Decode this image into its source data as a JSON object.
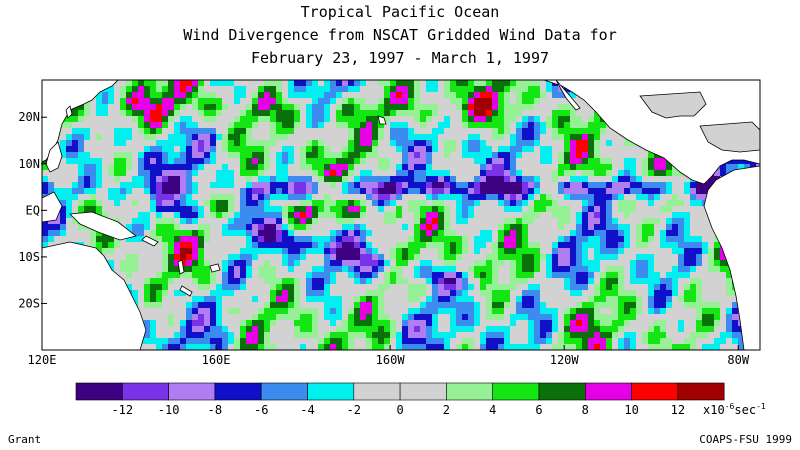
{
  "title": {
    "line1": "Tropical Pacific Ocean",
    "line2": "Wind Divergence from NSCAT Gridded Wind Data for",
    "line3": "February 23, 1997 - March 1, 1997"
  },
  "map": {
    "lat_labels": [
      {
        "label": "20N",
        "lat": 20
      },
      {
        "label": "10N",
        "lat": 10
      },
      {
        "label": "EQ",
        "lat": 0
      },
      {
        "label": "10S",
        "lat": -10
      },
      {
        "label": "20S",
        "lat": -20
      }
    ],
    "lon_labels": [
      {
        "label": "120E",
        "lon": 120
      },
      {
        "label": "160E",
        "lon": 160
      },
      {
        "label": "160W",
        "lon": 200
      },
      {
        "label": "120W",
        "lon": 240
      },
      {
        "label": "80W",
        "lon": 280
      }
    ],
    "lon_range": [
      120,
      285
    ],
    "lat_range": [
      -30,
      28
    ],
    "land_color": "#ffffff",
    "coast_color": "#000000"
  },
  "colorbar": {
    "colors": [
      "#3c0080",
      "#7a32e8",
      "#b07ef0",
      "#1010c8",
      "#3c8cf0",
      "#00f0f0",
      "#d2d2d2",
      "#d2d2d2",
      "#96f096",
      "#14e614",
      "#0a700a",
      "#e600e6",
      "#ff0000",
      "#a00000"
    ],
    "labels": [
      "-12",
      "-10",
      "-8",
      "-6",
      "-4",
      "-2",
      "0",
      "2",
      "4",
      "6",
      "8",
      "10",
      "12"
    ],
    "unit_label": "x10",
    "unit_exp": "-6",
    "unit_suffix": "sec",
    "unit_exp2": "-1"
  },
  "credits": {
    "left": "Grant",
    "right": "COAPS-FSU 1999"
  }
}
